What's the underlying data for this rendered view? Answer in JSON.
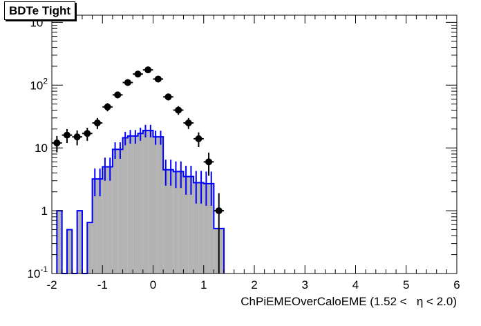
{
  "chart_data": {
    "type": "histogram",
    "title": "BDTe Tight",
    "xlabel": "ChPiEMEOverCaloEME (1.52 <   η < 2.0)",
    "ylabel": "",
    "xlim": [
      -2,
      6
    ],
    "ylim": [
      0.1,
      1300
    ],
    "yscale": "log",
    "grid": false,
    "x_ticks": [
      {
        "value": -2,
        "label": "-2"
      },
      {
        "value": -1,
        "label": "-1"
      },
      {
        "value": 0,
        "label": "0"
      },
      {
        "value": 1,
        "label": "1"
      },
      {
        "value": 2,
        "label": "2"
      },
      {
        "value": 3,
        "label": "3"
      },
      {
        "value": 4,
        "label": "4"
      },
      {
        "value": 5,
        "label": "5"
      },
      {
        "value": 6,
        "label": "6"
      }
    ],
    "y_ticks": [
      {
        "value": 0.1,
        "base": "10",
        "exp": "-1",
        "label": ""
      },
      {
        "value": 1,
        "base": "",
        "exp": "",
        "label": "1"
      },
      {
        "value": 10,
        "base": "",
        "exp": "",
        "label": "10"
      },
      {
        "value": 100,
        "base": "10",
        "exp": "2",
        "label": ""
      },
      {
        "value": 1000,
        "base": "10",
        "exp": "3",
        "label": ""
      }
    ],
    "bin_edges": [
      -1.9,
      -1.8,
      -1.7,
      -1.6,
      -1.5,
      -1.4,
      -1.3,
      -1.2,
      -1.1,
      -1.0,
      -0.9,
      -0.8,
      -0.7,
      -0.6,
      -0.5,
      -0.4,
      -0.3,
      -0.2,
      -0.1,
      0.0,
      0.1,
      0.2,
      0.3,
      0.4,
      0.5,
      0.6,
      0.7,
      0.8,
      0.9,
      1.0,
      1.1,
      1.2,
      1.3,
      1.4
    ],
    "series": [
      {
        "type": "filled-histogram",
        "fill_color": "#b3b3b3",
        "line_color": "#0000ff",
        "values": [
          1.0,
          0.0,
          0.5,
          0.0,
          1.0,
          0.0,
          0.65,
          3.2,
          3.2,
          5.0,
          5.0,
          9.5,
          9.5,
          14.5,
          15.5,
          15.5,
          17.0,
          19.0,
          19.0,
          15.0,
          15.0,
          4.5,
          4.5,
          4.2,
          4.2,
          3.5,
          3.5,
          2.8,
          2.8,
          2.7,
          2.7,
          0.52,
          0.52
        ],
        "errors": [
          0.0,
          0.0,
          0.0,
          0.0,
          0.0,
          0.0,
          0.0,
          1.5,
          1.5,
          2.0,
          2.0,
          2.8,
          2.8,
          3.5,
          3.8,
          3.8,
          4.0,
          4.3,
          4.3,
          3.8,
          3.8,
          2.0,
          2.0,
          1.9,
          1.9,
          1.7,
          1.7,
          1.5,
          1.5,
          1.5,
          1.5,
          0.0,
          0.0
        ]
      },
      {
        "type": "points",
        "color": "#000000",
        "x": [
          -1.9,
          -1.7,
          -1.5,
          -1.3,
          -1.1,
          -0.9,
          -0.7,
          -0.5,
          -0.3,
          -0.1,
          0.1,
          0.3,
          0.5,
          0.7,
          0.9,
          1.1,
          1.3
        ],
        "y": [
          12,
          16,
          15,
          17,
          25,
          45,
          70,
          110,
          150,
          175,
          125,
          65,
          40,
          25,
          14,
          6,
          1.0
        ],
        "yerr": [
          3.5,
          4,
          4,
          4,
          5,
          6.7,
          8.4,
          10.5,
          12.2,
          13.2,
          11.2,
          8.1,
          6.3,
          5,
          3.7,
          2.4,
          0.9
        ]
      }
    ]
  }
}
